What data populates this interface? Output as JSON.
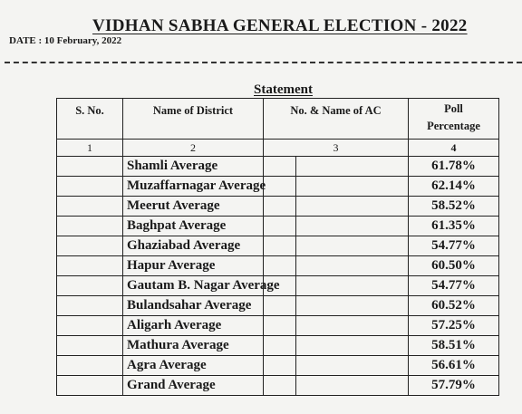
{
  "header": {
    "title": "VIDHAN SABHA GENERAL ELECTION - 2022",
    "date": "DATE : 10 February, 2022"
  },
  "statement": {
    "heading": "Statement",
    "columns": [
      "S. No.",
      "Name of District",
      "No. & Name of AC",
      "Poll Percentage"
    ],
    "column_numbers": [
      "1",
      "2",
      "3",
      "4"
    ],
    "rows": [
      {
        "district": "Shamli Average",
        "poll": "61.78%"
      },
      {
        "district": "Muzaffarnagar Average",
        "poll": "62.14%"
      },
      {
        "district": "Meerut Average",
        "poll": "58.52%"
      },
      {
        "district": "Baghpat Average",
        "poll": "61.35%"
      },
      {
        "district": "Ghaziabad Average",
        "poll": "54.77%"
      },
      {
        "district": "Hapur Average",
        "poll": "60.50%"
      },
      {
        "district": "Gautam B. Nagar Average",
        "poll": "54.77%"
      },
      {
        "district": "Bulandsahar Average",
        "poll": "60.52%"
      },
      {
        "district": "Aligarh Average",
        "poll": "57.25%"
      },
      {
        "district": "Mathura Average",
        "poll": "58.51%"
      },
      {
        "district": "Agra Average",
        "poll": "56.61%"
      },
      {
        "district": "Grand Average",
        "poll": "57.79%"
      }
    ]
  }
}
